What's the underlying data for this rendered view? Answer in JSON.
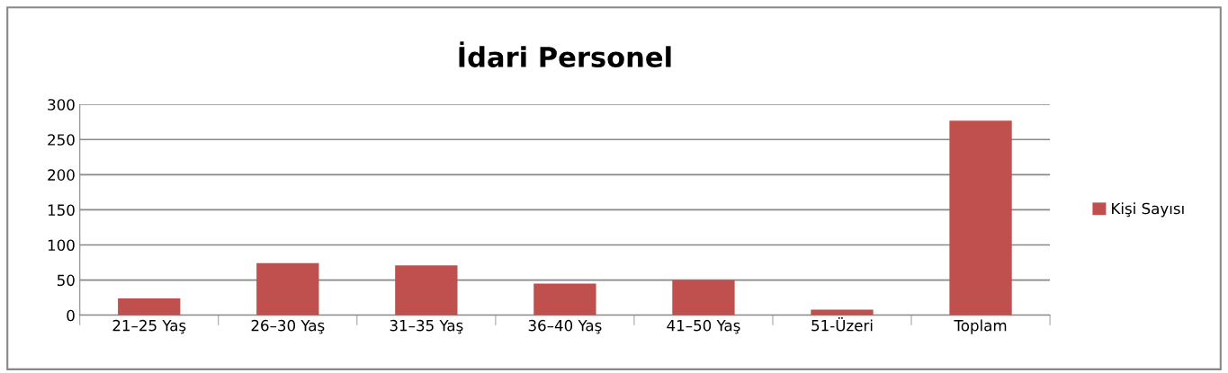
{
  "chart_data": {
    "type": "bar",
    "title": "İdari Personel",
    "categories": [
      "21–25 Yaş",
      "26–30 Yaş",
      "31–35 Yaş",
      "36–40 Yaş",
      "41–50 Yaş",
      "51-Üzeri",
      "Toplam"
    ],
    "series": [
      {
        "name": "Kişi Sayısı",
        "color": "#c0504d",
        "values": [
          24,
          74,
          71,
          45,
          50,
          8,
          277
        ]
      }
    ],
    "ylim": [
      0,
      300
    ],
    "yticks": [
      0,
      50,
      100,
      150,
      200,
      250,
      300
    ],
    "grid": "y",
    "legend": "right"
  }
}
